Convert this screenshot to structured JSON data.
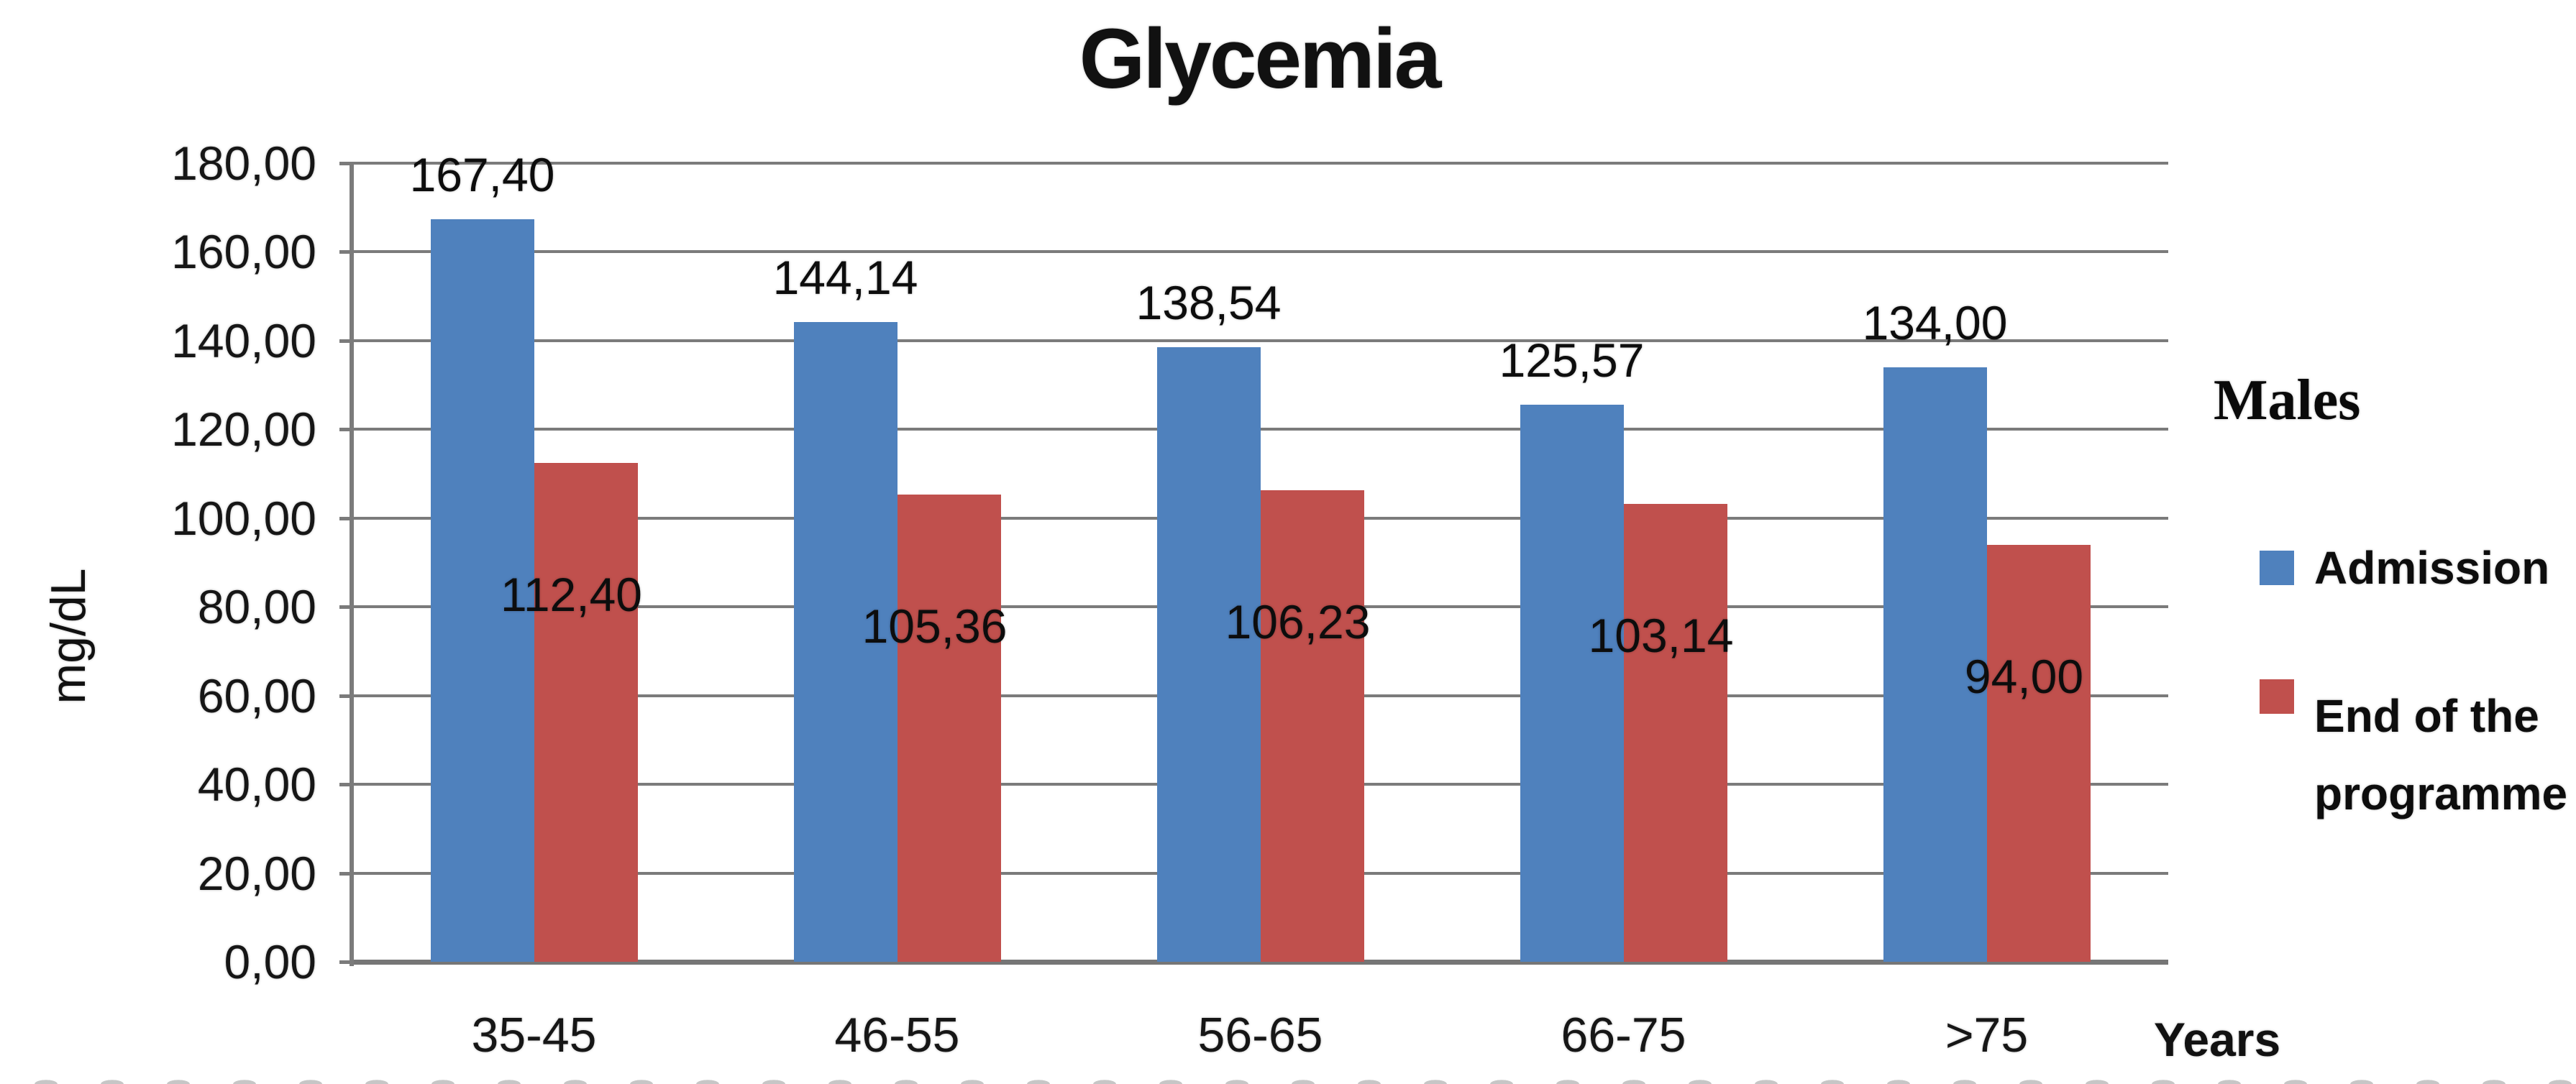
{
  "title": "Glycemia",
  "y_axis": {
    "label": "mg/dL",
    "tick_labels": [
      "180,00",
      "160,00",
      "140,00",
      "120,00",
      "100,00",
      "80,00",
      "60,00",
      "40,00",
      "20,00",
      "0,00"
    ],
    "max": 180,
    "step": 20
  },
  "x_axis": {
    "label": "Years",
    "categories": [
      "35-45",
      "46-55",
      "56-65",
      "66-75",
      ">75"
    ]
  },
  "legend": {
    "title": "Males",
    "items": [
      {
        "label": "Admission",
        "color": "#4F81BD"
      },
      {
        "label": "End of the programme",
        "label_lines": [
          "End of the",
          "programme"
        ],
        "color": "#C0504D"
      }
    ]
  },
  "chart_data": {
    "type": "bar",
    "title": "Glycemia",
    "xlabel": "Years",
    "ylabel": "mg/dL",
    "ylim": [
      0,
      180
    ],
    "ytick_step": 20,
    "grid": true,
    "legend_position": "right",
    "decimal_separator": ",",
    "categories": [
      "35-45",
      "46-55",
      "56-65",
      "66-75",
      ">75"
    ],
    "series": [
      {
        "name": "Admission",
        "color": "#4F81BD",
        "values": [
          167.4,
          144.14,
          138.54,
          125.57,
          134.0
        ],
        "labels": [
          "167,40",
          "144,14",
          "138,54",
          "125,57",
          "134,00"
        ]
      },
      {
        "name": "End of the programme",
        "color": "#C0504D",
        "values": [
          112.4,
          105.36,
          106.23,
          103.14,
          94.0
        ],
        "labels": [
          "112,40",
          "105,36",
          "106,23",
          "103,14",
          "94,00"
        ]
      }
    ]
  }
}
